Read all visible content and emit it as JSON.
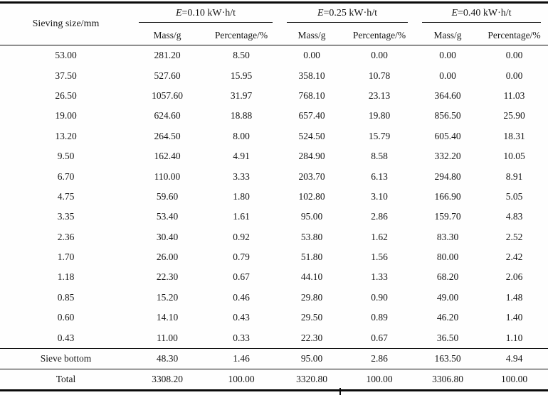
{
  "table": {
    "row_header": "Sieving size/mm",
    "groups": [
      {
        "var": "E",
        "rest": "=0.10 kW·h/t"
      },
      {
        "var": "E",
        "rest": "=0.25 kW·h/t"
      },
      {
        "var": "E",
        "rest": "=0.40 kW·h/t"
      }
    ],
    "subheaders": {
      "mass": "Mass/g",
      "percentage": "Percentage/%"
    },
    "rows": [
      {
        "size": "53.00",
        "values": [
          "281.20",
          "8.50",
          "0.00",
          "0.00",
          "0.00",
          "0.00"
        ]
      },
      {
        "size": "37.50",
        "values": [
          "527.60",
          "15.95",
          "358.10",
          "10.78",
          "0.00",
          "0.00"
        ]
      },
      {
        "size": "26.50",
        "values": [
          "1057.60",
          "31.97",
          "768.10",
          "23.13",
          "364.60",
          "11.03"
        ]
      },
      {
        "size": "19.00",
        "values": [
          "624.60",
          "18.88",
          "657.40",
          "19.80",
          "856.50",
          "25.90"
        ]
      },
      {
        "size": "13.20",
        "values": [
          "264.50",
          "8.00",
          "524.50",
          "15.79",
          "605.40",
          "18.31"
        ]
      },
      {
        "size": "9.50",
        "values": [
          "162.40",
          "4.91",
          "284.90",
          "8.58",
          "332.20",
          "10.05"
        ]
      },
      {
        "size": "6.70",
        "values": [
          "110.00",
          "3.33",
          "203.70",
          "6.13",
          "294.80",
          "8.91"
        ]
      },
      {
        "size": "4.75",
        "values": [
          "59.60",
          "1.80",
          "102.80",
          "3.10",
          "166.90",
          "5.05"
        ]
      },
      {
        "size": "3.35",
        "values": [
          "53.40",
          "1.61",
          "95.00",
          "2.86",
          "159.70",
          "4.83"
        ]
      },
      {
        "size": "2.36",
        "values": [
          "30.40",
          "0.92",
          "53.80",
          "1.62",
          "83.30",
          "2.52"
        ]
      },
      {
        "size": "1.70",
        "values": [
          "26.00",
          "0.79",
          "51.80",
          "1.56",
          "80.00",
          "2.42"
        ]
      },
      {
        "size": "1.18",
        "values": [
          "22.30",
          "0.67",
          "44.10",
          "1.33",
          "68.20",
          "2.06"
        ]
      },
      {
        "size": "0.85",
        "values": [
          "15.20",
          "0.46",
          "29.80",
          "0.90",
          "49.00",
          "1.48"
        ]
      },
      {
        "size": "0.60",
        "values": [
          "14.10",
          "0.43",
          "29.50",
          "0.89",
          "46.20",
          "1.40"
        ]
      },
      {
        "size": "0.43",
        "values": [
          "11.00",
          "0.33",
          "22.30",
          "0.67",
          "36.50",
          "1.10"
        ]
      }
    ],
    "sieve_bottom": {
      "label": "Sieve bottom",
      "values": [
        "48.30",
        "1.46",
        "95.00",
        "2.86",
        "163.50",
        "4.94"
      ]
    },
    "total": {
      "label": "Total",
      "values": [
        "3308.20",
        "100.00",
        "3320.80",
        "100.00",
        "3306.80",
        "100.00"
      ]
    }
  }
}
